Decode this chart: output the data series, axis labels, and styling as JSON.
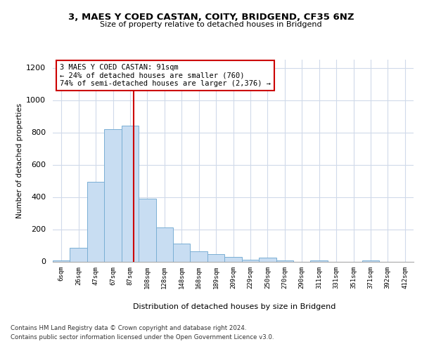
{
  "title1": "3, MAES Y COED CASTAN, COITY, BRIDGEND, CF35 6NZ",
  "title2": "Size of property relative to detached houses in Bridgend",
  "xlabel": "Distribution of detached houses by size in Bridgend",
  "ylabel": "Number of detached properties",
  "bins": [
    "6sqm",
    "26sqm",
    "47sqm",
    "67sqm",
    "87sqm",
    "108sqm",
    "128sqm",
    "148sqm",
    "168sqm",
    "189sqm",
    "209sqm",
    "229sqm",
    "250sqm",
    "270sqm",
    "290sqm",
    "311sqm",
    "331sqm",
    "351sqm",
    "371sqm",
    "392sqm",
    "412sqm"
  ],
  "values": [
    5,
    85,
    495,
    820,
    840,
    390,
    210,
    110,
    65,
    45,
    30,
    10,
    25,
    5,
    0,
    5,
    0,
    0,
    5,
    0,
    0
  ],
  "bar_color": "#c8ddf2",
  "bar_edge_color": "#7aafd4",
  "vline_color": "#cc0000",
  "vline_x": 4.2,
  "annotation_text": "3 MAES Y COED CASTAN: 91sqm\n← 24% of detached houses are smaller (760)\n74% of semi-detached houses are larger (2,376) →",
  "annotation_box_color": "#ffffff",
  "annotation_box_edge": "#cc0000",
  "ylim": [
    0,
    1250
  ],
  "yticks": [
    0,
    200,
    400,
    600,
    800,
    1000,
    1200
  ],
  "footer1": "Contains HM Land Registry data © Crown copyright and database right 2024.",
  "footer2": "Contains public sector information licensed under the Open Government Licence v3.0.",
  "bg_color": "#ffffff",
  "grid_color": "#d0daea"
}
